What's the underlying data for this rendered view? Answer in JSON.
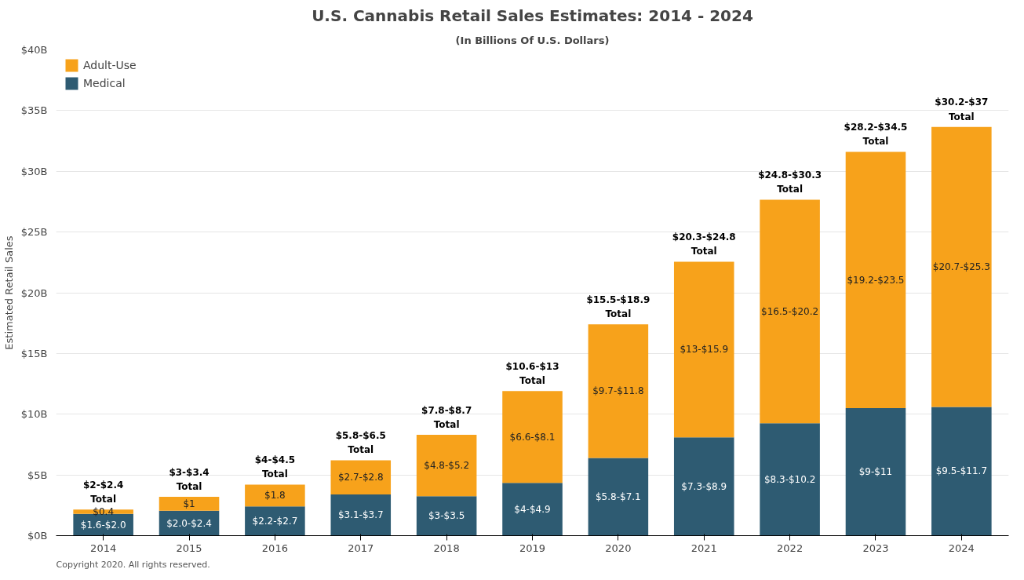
{
  "chart_data": {
    "type": "bar",
    "title": "U.S. Cannabis Retail Sales Estimates: 2014 - 2024",
    "subtitle": "(In Billions Of U.S. Dollars)",
    "ylabel": "Estimated Retail Sales",
    "categories": [
      "2014",
      "2015",
      "2016",
      "2017",
      "2018",
      "2019",
      "2020",
      "2021",
      "2022",
      "2023",
      "2024"
    ],
    "stacked": true,
    "series": [
      {
        "name": "Medical",
        "color": "#2e5b72",
        "values": [
          1.8,
          2.05,
          2.4,
          3.4,
          3.25,
          4.35,
          6.4,
          8.1,
          9.25,
          10.5,
          10.6
        ],
        "value_labels": [
          "$1.6-$2.0",
          "$2.0-$2.4",
          "$2.2-$2.7",
          "$3.1-$3.7",
          "$3-$3.5",
          "$4-$4.9",
          "$5.8-$7.1",
          "$7.3-$8.9",
          "$8.3-$10.2",
          "$9-$11",
          "$9.5-$11.7"
        ]
      },
      {
        "name": "Adult-Use",
        "color": "#f7a21b",
        "values": [
          0.35,
          1.15,
          1.8,
          2.8,
          5.05,
          7.55,
          11.0,
          14.45,
          18.4,
          21.1,
          23.05
        ],
        "value_labels": [
          "$0.4",
          "$1",
          "$1.8",
          "$2.7-$2.8",
          "$4.8-$5.2",
          "$6.6-$8.1",
          "$9.7-$11.8",
          "$13-$15.9",
          "$16.5-$20.2",
          "$19.2-$23.5",
          "$20.7-$25.3"
        ]
      }
    ],
    "totals": [
      "$2-$2.4\nTotal",
      "$3-$3.4\nTotal",
      "$4-$4.5\nTotal",
      "$5.8-$6.5\nTotal",
      "$7.8-$8.7\nTotal",
      "$10.6-$13\nTotal",
      "$15.5-$18.9\nTotal",
      "$20.3-$24.8\nTotal",
      "$24.8-$30.3\nTotal",
      "$28.2-$34.5\nTotal",
      "$30.2-$37\nTotal"
    ],
    "ylim": [
      0,
      40
    ],
    "yticks": [
      {
        "value": 0,
        "label": "$0B"
      },
      {
        "value": 5,
        "label": "$5B"
      },
      {
        "value": 10,
        "label": "$10B"
      },
      {
        "value": 15,
        "label": "$15B"
      },
      {
        "value": 20,
        "label": "$20B"
      },
      {
        "value": 25,
        "label": "$25B"
      },
      {
        "value": 30,
        "label": "$30B"
      },
      {
        "value": 35,
        "label": "$35B"
      },
      {
        "value": 40,
        "label": "$40B"
      }
    ],
    "grid": "y",
    "legend": "top left",
    "annotations": [
      "Copyright 2020. All rights reserved."
    ]
  }
}
